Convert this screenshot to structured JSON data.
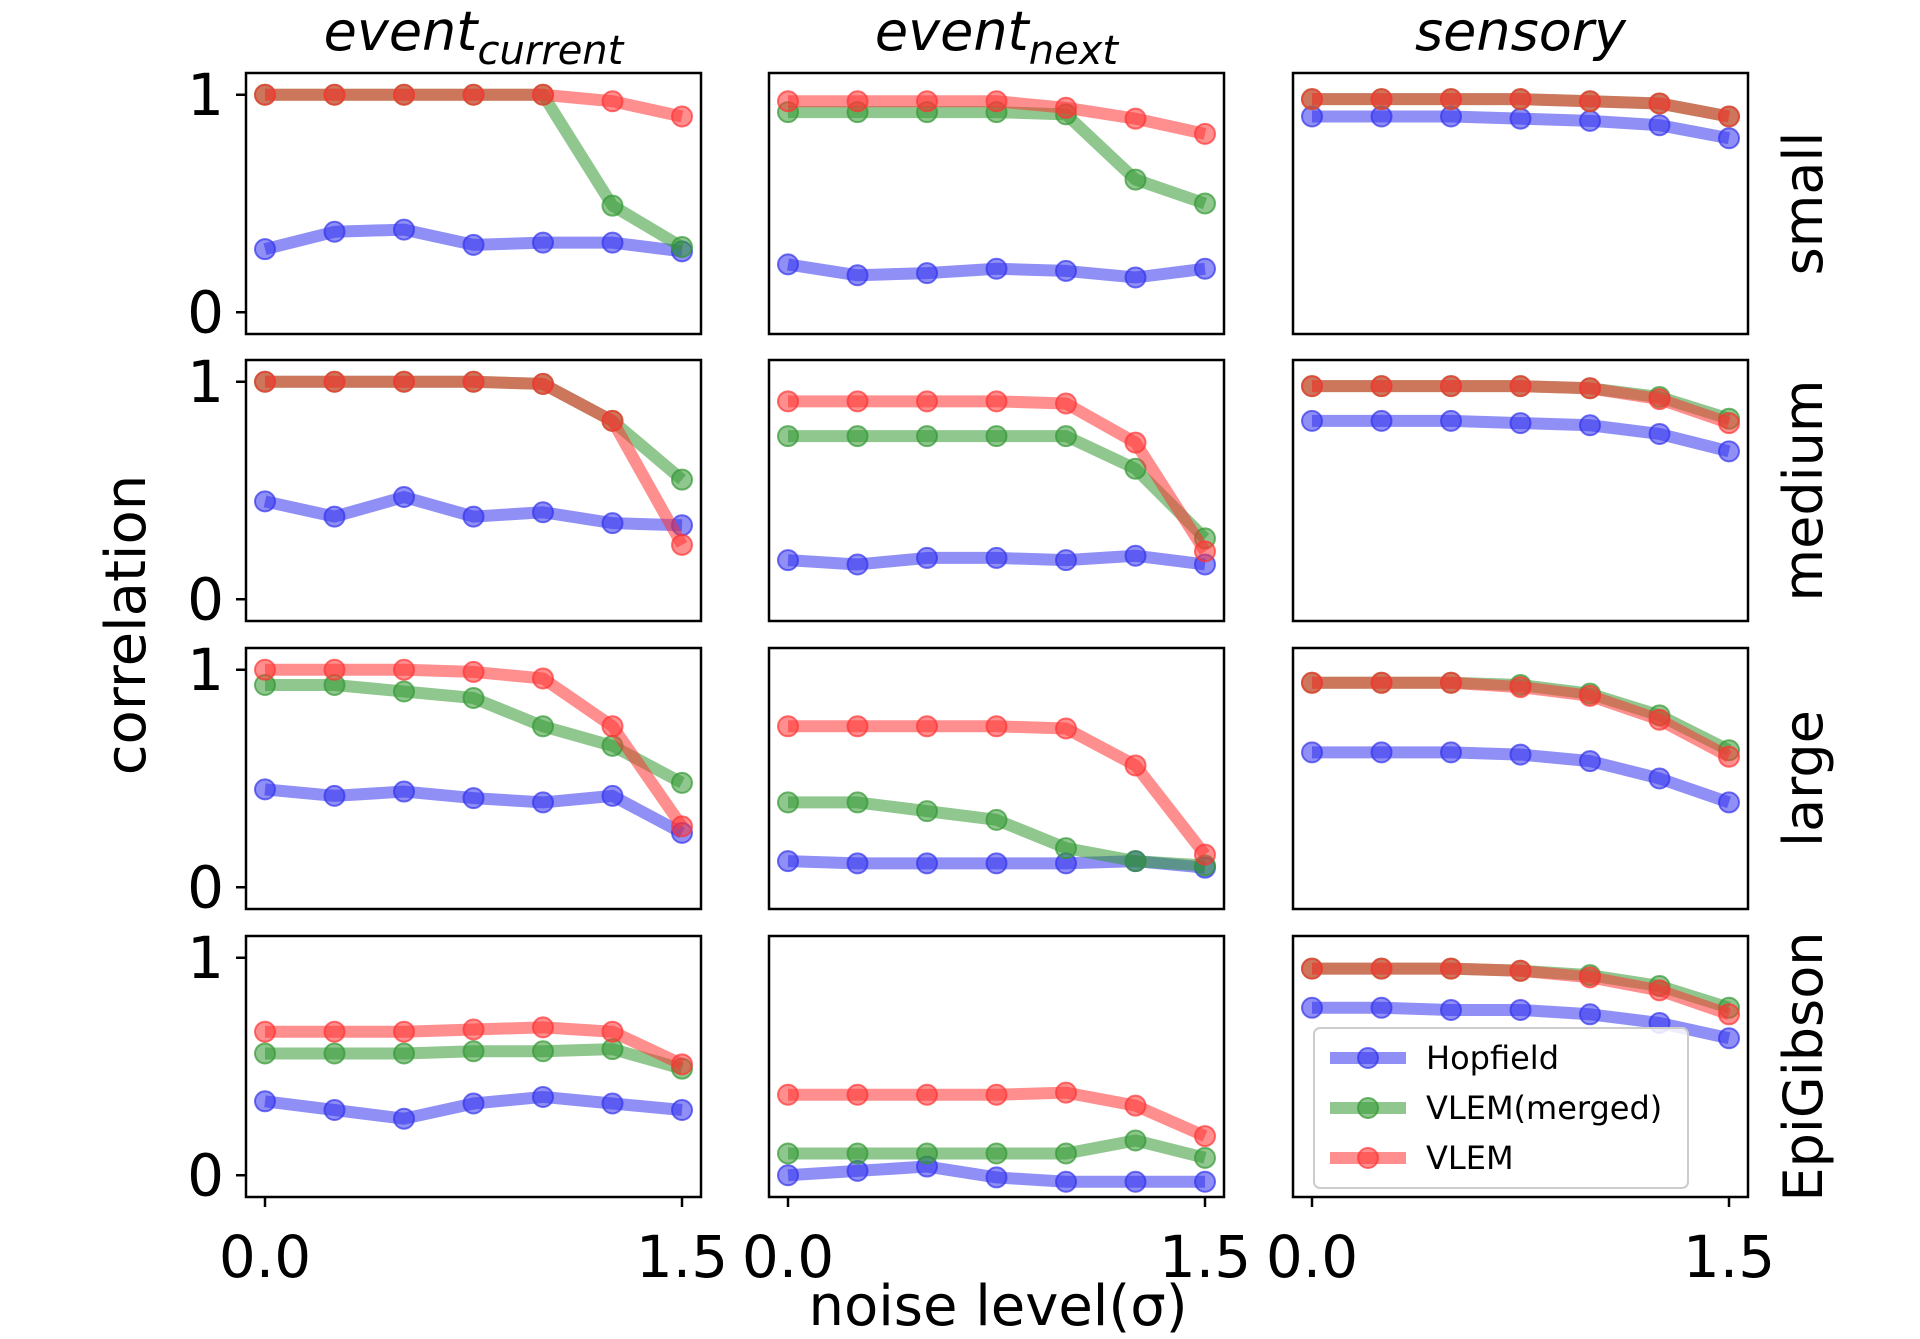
{
  "chart_data": {
    "type": "line",
    "layout": "4 rows x 3 columns grid of line plots",
    "xlabel": "noise level(σ)",
    "ylabel": "correlation",
    "x": [
      0.0,
      0.25,
      0.5,
      0.75,
      1.0,
      1.25,
      1.5
    ],
    "xticks": [
      "0.0",
      "1.5"
    ],
    "yticks": [
      "0",
      "1"
    ],
    "ylim": [
      -0.1,
      1.1
    ],
    "grid": false,
    "columns": [
      {
        "id": "event_current",
        "title_base": "event",
        "title_sub": "current"
      },
      {
        "id": "event_next",
        "title_base": "event",
        "title_sub": "next"
      },
      {
        "id": "sensory",
        "title_base": "sensory",
        "title_sub": ""
      }
    ],
    "rows": [
      "small",
      "medium",
      "large",
      "EpiGibson"
    ],
    "series_style": [
      {
        "name": "Hopfield",
        "color": "#3333ee"
      },
      {
        "name": "VLEM(merged)",
        "color": "#339933"
      },
      {
        "name": "VLEM",
        "color": "#ff3333"
      }
    ],
    "legend": {
      "location": "lower-right of bottom-right panel",
      "entries": [
        "Hopfield",
        "VLEM(merged)",
        "VLEM"
      ]
    },
    "panels": [
      {
        "row": 0,
        "col": 0,
        "series": [
          {
            "name": "Hopfield",
            "values": [
              0.29,
              0.37,
              0.38,
              0.31,
              0.32,
              0.32,
              0.28
            ]
          },
          {
            "name": "VLEM(merged)",
            "values": [
              1.0,
              1.0,
              1.0,
              1.0,
              1.0,
              0.49,
              0.3
            ]
          },
          {
            "name": "VLEM",
            "values": [
              1.0,
              1.0,
              1.0,
              1.0,
              1.0,
              0.97,
              0.9
            ]
          }
        ]
      },
      {
        "row": 0,
        "col": 1,
        "series": [
          {
            "name": "Hopfield",
            "values": [
              0.22,
              0.17,
              0.18,
              0.2,
              0.19,
              0.16,
              0.2
            ]
          },
          {
            "name": "VLEM(merged)",
            "values": [
              0.92,
              0.92,
              0.92,
              0.92,
              0.91,
              0.61,
              0.5
            ]
          },
          {
            "name": "VLEM",
            "values": [
              0.97,
              0.97,
              0.97,
              0.97,
              0.94,
              0.89,
              0.82
            ]
          }
        ]
      },
      {
        "row": 0,
        "col": 2,
        "series": [
          {
            "name": "Hopfield",
            "values": [
              0.9,
              0.9,
              0.9,
              0.89,
              0.88,
              0.86,
              0.8
            ]
          },
          {
            "name": "VLEM(merged)",
            "values": [
              0.98,
              0.98,
              0.98,
              0.98,
              0.97,
              0.96,
              0.9
            ]
          },
          {
            "name": "VLEM",
            "values": [
              0.98,
              0.98,
              0.98,
              0.98,
              0.97,
              0.96,
              0.9
            ]
          }
        ]
      },
      {
        "row": 1,
        "col": 0,
        "series": [
          {
            "name": "Hopfield",
            "values": [
              0.45,
              0.38,
              0.47,
              0.38,
              0.4,
              0.35,
              0.34
            ]
          },
          {
            "name": "VLEM(merged)",
            "values": [
              1.0,
              1.0,
              1.0,
              1.0,
              0.99,
              0.82,
              0.55
            ]
          },
          {
            "name": "VLEM",
            "values": [
              1.0,
              1.0,
              1.0,
              1.0,
              0.99,
              0.82,
              0.25
            ]
          }
        ]
      },
      {
        "row": 1,
        "col": 1,
        "series": [
          {
            "name": "Hopfield",
            "values": [
              0.18,
              0.16,
              0.19,
              0.19,
              0.18,
              0.2,
              0.16
            ]
          },
          {
            "name": "VLEM(merged)",
            "values": [
              0.75,
              0.75,
              0.75,
              0.75,
              0.75,
              0.6,
              0.28
            ]
          },
          {
            "name": "VLEM",
            "values": [
              0.91,
              0.91,
              0.91,
              0.91,
              0.9,
              0.72,
              0.22
            ]
          }
        ]
      },
      {
        "row": 1,
        "col": 2,
        "series": [
          {
            "name": "Hopfield",
            "values": [
              0.82,
              0.82,
              0.82,
              0.81,
              0.8,
              0.76,
              0.68
            ]
          },
          {
            "name": "VLEM(merged)",
            "values": [
              0.98,
              0.98,
              0.98,
              0.98,
              0.97,
              0.93,
              0.83
            ]
          },
          {
            "name": "VLEM",
            "values": [
              0.98,
              0.98,
              0.98,
              0.98,
              0.97,
              0.92,
              0.81
            ]
          }
        ]
      },
      {
        "row": 2,
        "col": 0,
        "series": [
          {
            "name": "Hopfield",
            "values": [
              0.45,
              0.42,
              0.44,
              0.41,
              0.39,
              0.42,
              0.25
            ]
          },
          {
            "name": "VLEM(merged)",
            "values": [
              0.93,
              0.93,
              0.9,
              0.87,
              0.74,
              0.65,
              0.48
            ]
          },
          {
            "name": "VLEM",
            "values": [
              1.0,
              1.0,
              1.0,
              0.99,
              0.96,
              0.74,
              0.28
            ]
          }
        ]
      },
      {
        "row": 2,
        "col": 1,
        "series": [
          {
            "name": "Hopfield",
            "values": [
              0.12,
              0.11,
              0.11,
              0.11,
              0.11,
              0.12,
              0.09
            ]
          },
          {
            "name": "VLEM(merged)",
            "values": [
              0.39,
              0.39,
              0.35,
              0.31,
              0.18,
              0.12,
              0.1
            ]
          },
          {
            "name": "VLEM",
            "values": [
              0.74,
              0.74,
              0.74,
              0.74,
              0.73,
              0.56,
              0.15
            ]
          }
        ]
      },
      {
        "row": 2,
        "col": 2,
        "series": [
          {
            "name": "Hopfield",
            "values": [
              0.62,
              0.62,
              0.62,
              0.61,
              0.58,
              0.5,
              0.39
            ]
          },
          {
            "name": "VLEM(merged)",
            "values": [
              0.94,
              0.94,
              0.94,
              0.93,
              0.89,
              0.79,
              0.63
            ]
          },
          {
            "name": "VLEM",
            "values": [
              0.94,
              0.94,
              0.94,
              0.92,
              0.88,
              0.77,
              0.6
            ]
          }
        ]
      },
      {
        "row": 3,
        "col": 0,
        "series": [
          {
            "name": "Hopfield",
            "values": [
              0.34,
              0.3,
              0.26,
              0.33,
              0.36,
              0.33,
              0.3
            ]
          },
          {
            "name": "VLEM(merged)",
            "values": [
              0.56,
              0.56,
              0.56,
              0.57,
              0.57,
              0.58,
              0.49
            ]
          },
          {
            "name": "VLEM",
            "values": [
              0.66,
              0.66,
              0.66,
              0.67,
              0.68,
              0.66,
              0.51
            ]
          }
        ]
      },
      {
        "row": 3,
        "col": 1,
        "series": [
          {
            "name": "Hopfield",
            "values": [
              0.0,
              0.02,
              0.04,
              -0.01,
              -0.03,
              -0.03,
              -0.03
            ]
          },
          {
            "name": "VLEM(merged)",
            "values": [
              0.1,
              0.1,
              0.1,
              0.1,
              0.1,
              0.16,
              0.08
            ]
          },
          {
            "name": "VLEM",
            "values": [
              0.37,
              0.37,
              0.37,
              0.37,
              0.38,
              0.32,
              0.18
            ]
          }
        ]
      },
      {
        "row": 3,
        "col": 2,
        "series": [
          {
            "name": "Hopfield",
            "values": [
              0.77,
              0.77,
              0.76,
              0.76,
              0.74,
              0.7,
              0.63
            ]
          },
          {
            "name": "VLEM(merged)",
            "values": [
              0.95,
              0.95,
              0.95,
              0.94,
              0.92,
              0.87,
              0.77
            ]
          },
          {
            "name": "VLEM",
            "values": [
              0.95,
              0.95,
              0.95,
              0.94,
              0.91,
              0.85,
              0.74
            ]
          }
        ]
      }
    ]
  }
}
